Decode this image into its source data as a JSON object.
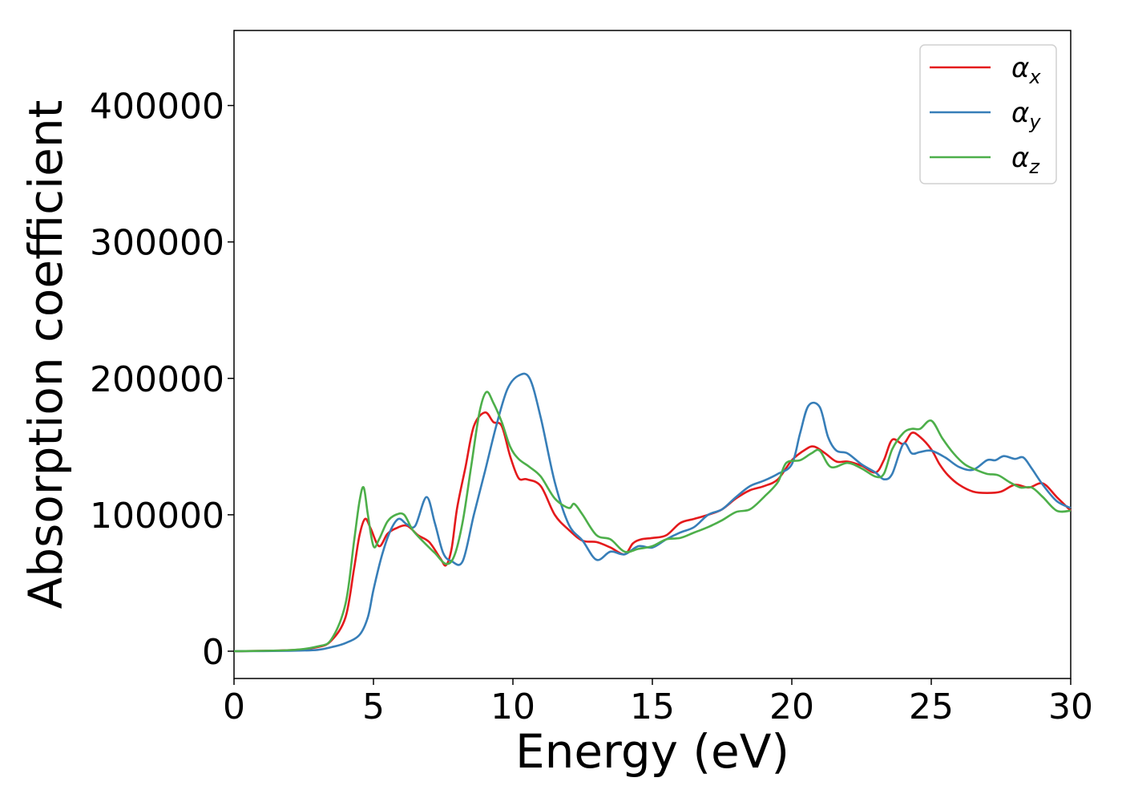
{
  "chart_data": {
    "type": "line",
    "title": "",
    "xlabel": "Energy (eV)",
    "ylabel": "Absorption coefficient",
    "xlim": [
      0,
      30
    ],
    "ylim": [
      -20000,
      455000
    ],
    "xticks": [
      0,
      5,
      10,
      15,
      20,
      25,
      30
    ],
    "yticks": [
      0,
      100000,
      200000,
      300000,
      400000
    ],
    "grid": false,
    "legend": {
      "position": "top-right"
    },
    "series": [
      {
        "name": "α_x",
        "sub": "x",
        "color": "#e41a1c",
        "x": [
          0,
          2,
          3,
          3.5,
          4,
          4.3,
          4.5,
          4.7,
          4.9,
          5.2,
          5.5,
          5.8,
          6.2,
          6.6,
          7.0,
          7.4,
          7.6,
          7.8,
          8.0,
          8.3,
          8.6,
          9.0,
          9.3,
          9.6,
          9.9,
          10.2,
          10.5,
          11.0,
          11.5,
          12.0,
          12.5,
          13.0,
          13.5,
          14.0,
          14.3,
          14.6,
          15.0,
          15.5,
          16.0,
          16.5,
          17.0,
          17.5,
          18.0,
          18.5,
          19.0,
          19.5,
          20.0,
          20.5,
          20.8,
          21.2,
          21.6,
          22.0,
          22.5,
          23.0,
          23.3,
          23.6,
          24.0,
          24.3,
          24.6,
          25.0,
          25.3,
          25.6,
          26.0,
          26.5,
          27.0,
          27.5,
          28.0,
          28.5,
          29.0,
          29.5,
          30.0
        ],
        "y": [
          0,
          800,
          3000,
          8000,
          25000,
          60000,
          85000,
          97000,
          90000,
          77000,
          86000,
          90000,
          92000,
          85000,
          80000,
          68000,
          63000,
          75000,
          105000,
          135000,
          165000,
          175000,
          168000,
          165000,
          143000,
          127000,
          126000,
          121000,
          100000,
          89000,
          81000,
          80000,
          76000,
          71000,
          79000,
          82000,
          83000,
          85000,
          94000,
          97000,
          100000,
          104000,
          112000,
          118000,
          121000,
          126000,
          140000,
          148000,
          150000,
          145000,
          139000,
          139000,
          136000,
          131000,
          140000,
          155000,
          152000,
          160000,
          157000,
          148000,
          137000,
          129000,
          122000,
          117000,
          116000,
          117000,
          122000,
          120000,
          123000,
          113000,
          103000
        ]
      },
      {
        "name": "α_y",
        "sub": "y",
        "color": "#377eb8",
        "x": [
          0,
          2,
          3,
          3.5,
          4,
          4.5,
          4.8,
          5.0,
          5.3,
          5.6,
          5.9,
          6.2,
          6.5,
          6.9,
          7.2,
          7.5,
          7.8,
          8.2,
          8.6,
          9.0,
          9.4,
          9.8,
          10.2,
          10.6,
          11.0,
          11.5,
          12.0,
          12.5,
          13.0,
          13.5,
          14.0,
          14.5,
          15.0,
          15.5,
          16.0,
          16.5,
          17.0,
          17.5,
          18.0,
          18.5,
          19.0,
          19.5,
          20.0,
          20.3,
          20.6,
          21.0,
          21.3,
          21.6,
          22.0,
          22.5,
          23.0,
          23.3,
          23.6,
          24.0,
          24.3,
          24.6,
          25.0,
          25.5,
          26.0,
          26.5,
          27.0,
          27.3,
          27.6,
          28.0,
          28.3,
          28.6,
          29.0,
          29.5,
          30.0
        ],
        "y": [
          0,
          300,
          1000,
          3000,
          6000,
          12000,
          25000,
          45000,
          70000,
          88000,
          97000,
          93000,
          92000,
          113000,
          94000,
          72000,
          66000,
          66000,
          100000,
          132000,
          165000,
          192000,
          202000,
          200000,
          171000,
          124000,
          93000,
          81000,
          67000,
          73000,
          71000,
          77000,
          76000,
          82000,
          87000,
          91000,
          100000,
          104000,
          113000,
          121000,
          125000,
          130000,
          137000,
          160000,
          180000,
          179000,
          157000,
          147000,
          145000,
          137000,
          131000,
          126000,
          130000,
          152000,
          145000,
          146000,
          147000,
          142000,
          135000,
          133000,
          140000,
          140000,
          143000,
          141000,
          142000,
          134000,
          122000,
          110000,
          105000
        ]
      },
      {
        "name": "α_z",
        "sub": "z",
        "color": "#4daf4a",
        "x": [
          0,
          2,
          3,
          3.5,
          4,
          4.3,
          4.5,
          4.65,
          4.8,
          5.0,
          5.2,
          5.5,
          5.8,
          6.1,
          6.4,
          6.8,
          7.2,
          7.6,
          7.9,
          8.2,
          8.5,
          8.8,
          9.05,
          9.3,
          9.6,
          9.9,
          10.2,
          10.6,
          11.0,
          11.5,
          12.0,
          12.2,
          12.5,
          13.0,
          13.5,
          14.0,
          14.5,
          15.0,
          15.5,
          16.0,
          16.5,
          17.0,
          17.5,
          18.0,
          18.5,
          19.0,
          19.5,
          19.8,
          20.3,
          20.7,
          21.0,
          21.4,
          22.0,
          22.5,
          23.0,
          23.3,
          23.6,
          24.0,
          24.3,
          24.6,
          25.0,
          25.4,
          25.8,
          26.2,
          26.6,
          27.0,
          27.4,
          27.8,
          28.2,
          28.6,
          29.0,
          29.5,
          30.0
        ],
        "y": [
          0,
          800,
          3500,
          9000,
          35000,
          80000,
          110000,
          120000,
          100000,
          77000,
          82000,
          95000,
          100000,
          100000,
          89000,
          80000,
          72000,
          64000,
          70000,
          95000,
          135000,
          175000,
          190000,
          182000,
          168000,
          150000,
          141000,
          135000,
          128000,
          112000,
          105000,
          108000,
          100000,
          85000,
          82000,
          73000,
          75000,
          77000,
          82000,
          83000,
          87000,
          91000,
          96000,
          102000,
          104000,
          113000,
          124000,
          138000,
          140000,
          145000,
          147000,
          135000,
          138000,
          134000,
          128000,
          130000,
          148000,
          160000,
          163000,
          163000,
          169000,
          156000,
          145000,
          137000,
          133000,
          130000,
          129000,
          124000,
          120000,
          120000,
          113000,
          103000,
          103000
        ]
      }
    ]
  }
}
